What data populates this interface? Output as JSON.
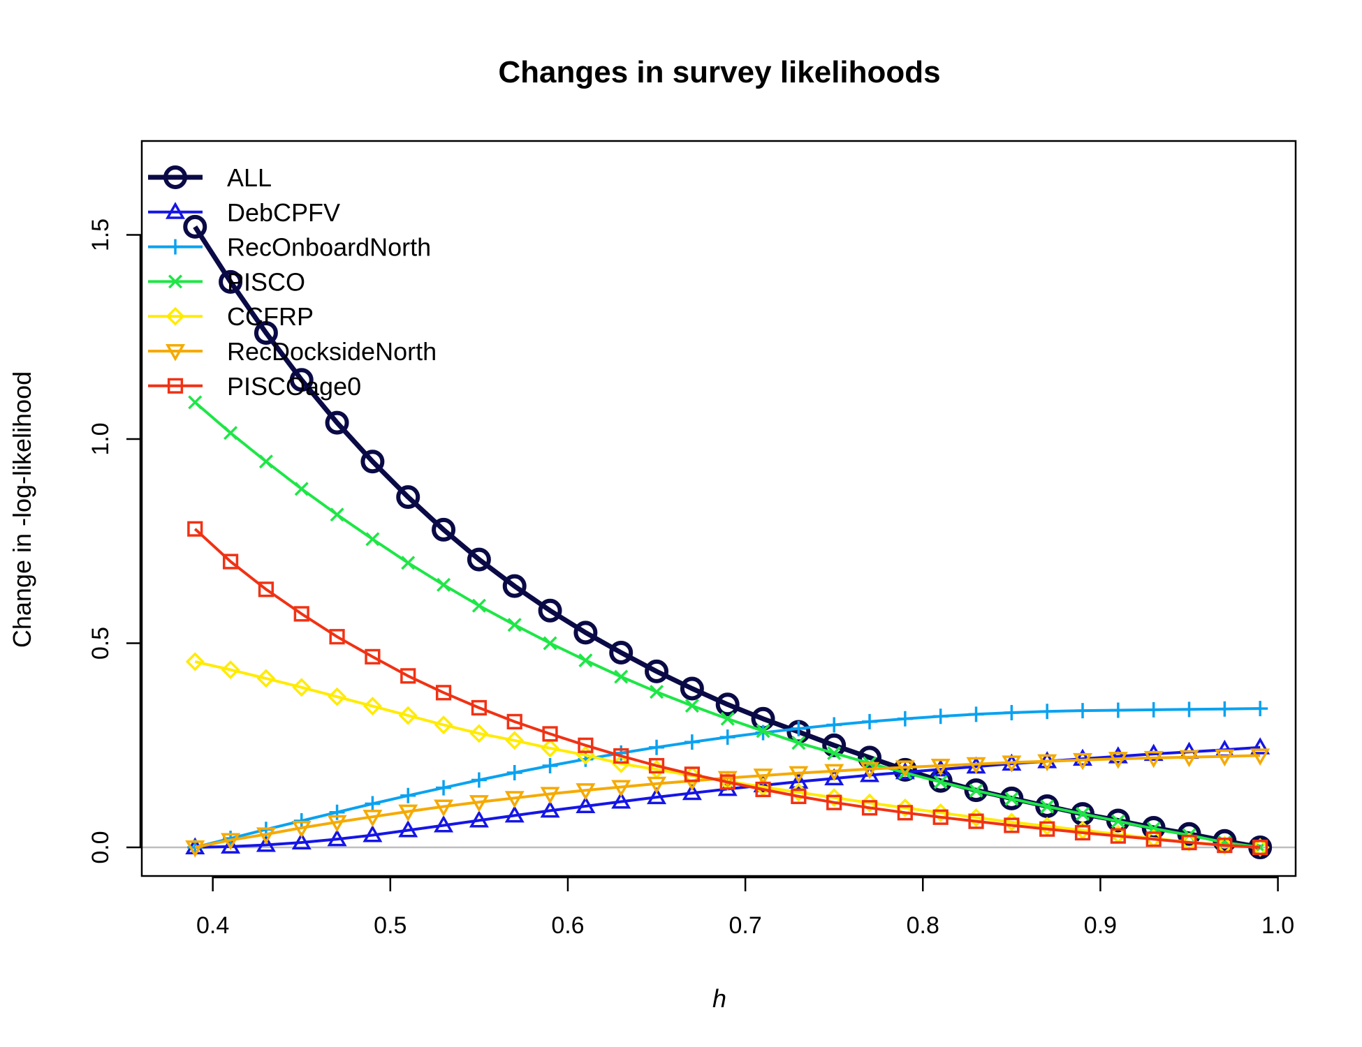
{
  "chart_data": {
    "type": "line",
    "title": "Changes in survey likelihoods",
    "xlabel": "h",
    "ylabel": "Change in -log-likelihood",
    "xlim": [
      0.36,
      1.01
    ],
    "ylim": [
      -0.07,
      1.73
    ],
    "x_ticks": [
      "0.4",
      "0.5",
      "0.6",
      "0.7",
      "0.8",
      "0.9",
      "1.0"
    ],
    "x_tick_values": [
      0.4,
      0.5,
      0.6,
      0.7,
      0.8,
      0.9,
      1.0
    ],
    "y_ticks": [
      "0.0",
      "0.5",
      "1.0",
      "1.5"
    ],
    "y_tick_values": [
      0.0,
      0.5,
      1.0,
      1.5
    ],
    "grid": false,
    "reference_line": 0,
    "legend_position": "top-left",
    "x": [
      0.39,
      0.41,
      0.43,
      0.45,
      0.47,
      0.49,
      0.51,
      0.53,
      0.55,
      0.57,
      0.59,
      0.61,
      0.63,
      0.65,
      0.67,
      0.69,
      0.71,
      0.73,
      0.75,
      0.77,
      0.79,
      0.81,
      0.83,
      0.85,
      0.87,
      0.89,
      0.91,
      0.93,
      0.95,
      0.97,
      0.99
    ],
    "series": [
      {
        "name": "ALL",
        "color": "#0a0a46",
        "marker": "circle",
        "bold": true,
        "values": [
          1.52,
          1.385,
          1.26,
          1.145,
          1.04,
          0.945,
          0.858,
          0.778,
          0.705,
          0.64,
          0.58,
          0.526,
          0.477,
          0.431,
          0.389,
          0.35,
          0.315,
          0.283,
          0.25,
          0.22,
          0.19,
          0.163,
          0.14,
          0.12,
          0.101,
          0.082,
          0.066,
          0.048,
          0.033,
          0.016,
          0.0
        ]
      },
      {
        "name": "DebCPFV",
        "color": "#1515e6",
        "marker": "triangle-up",
        "values": [
          0.0,
          0.002,
          0.006,
          0.012,
          0.02,
          0.03,
          0.042,
          0.054,
          0.066,
          0.078,
          0.09,
          0.101,
          0.112,
          0.123,
          0.133,
          0.143,
          0.152,
          0.161,
          0.169,
          0.177,
          0.184,
          0.191,
          0.198,
          0.205,
          0.211,
          0.217,
          0.223,
          0.229,
          0.234,
          0.239,
          0.245
        ]
      },
      {
        "name": "RecOnboardNorth",
        "color": "#0aa2f0",
        "marker": "plus",
        "values": [
          0.0,
          0.022,
          0.044,
          0.065,
          0.086,
          0.107,
          0.127,
          0.146,
          0.165,
          0.183,
          0.2,
          0.216,
          0.231,
          0.245,
          0.258,
          0.27,
          0.281,
          0.291,
          0.3,
          0.308,
          0.315,
          0.321,
          0.326,
          0.33,
          0.333,
          0.335,
          0.336,
          0.337,
          0.338,
          0.339,
          0.34
        ]
      },
      {
        "name": "PISCO",
        "color": "#1ee646",
        "marker": "cross",
        "values": [
          1.09,
          1.015,
          0.945,
          0.878,
          0.815,
          0.755,
          0.697,
          0.643,
          0.592,
          0.545,
          0.5,
          0.458,
          0.418,
          0.381,
          0.347,
          0.315,
          0.285,
          0.256,
          0.231,
          0.206,
          0.183,
          0.16,
          0.139,
          0.119,
          0.1,
          0.082,
          0.064,
          0.046,
          0.03,
          0.012,
          0.0
        ]
      },
      {
        "name": "CCFRP",
        "color": "#ffeb00",
        "marker": "diamond",
        "values": [
          0.455,
          0.435,
          0.414,
          0.392,
          0.369,
          0.346,
          0.323,
          0.3,
          0.279,
          0.262,
          0.243,
          0.226,
          0.205,
          0.191,
          0.176,
          0.162,
          0.148,
          0.135,
          0.122,
          0.109,
          0.097,
          0.085,
          0.073,
          0.062,
          0.052,
          0.042,
          0.032,
          0.022,
          0.013,
          0.005,
          0.0
        ]
      },
      {
        "name": "RecDocksideNorth",
        "color": "#f5aa00",
        "marker": "triangle-down",
        "values": [
          0.0,
          0.018,
          0.032,
          0.048,
          0.062,
          0.075,
          0.088,
          0.1,
          0.111,
          0.121,
          0.131,
          0.14,
          0.148,
          0.156,
          0.163,
          0.17,
          0.176,
          0.182,
          0.187,
          0.192,
          0.196,
          0.2,
          0.204,
          0.208,
          0.211,
          0.214,
          0.217,
          0.219,
          0.221,
          0.223,
          0.225
        ]
      },
      {
        "name": "PISCOage0",
        "color": "#f03214",
        "marker": "square",
        "values": [
          0.78,
          0.7,
          0.632,
          0.572,
          0.516,
          0.467,
          0.42,
          0.379,
          0.342,
          0.308,
          0.278,
          0.25,
          0.224,
          0.2,
          0.179,
          0.16,
          0.142,
          0.125,
          0.11,
          0.097,
          0.085,
          0.074,
          0.064,
          0.054,
          0.045,
          0.036,
          0.028,
          0.02,
          0.012,
          0.005,
          0.0
        ]
      }
    ]
  }
}
